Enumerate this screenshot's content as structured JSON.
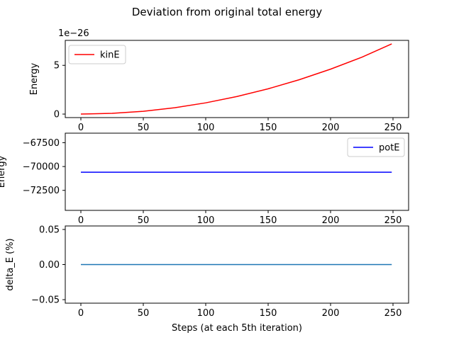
{
  "figure": {
    "title": "Deviation from original total energy"
  },
  "chart_data": [
    {
      "type": "line",
      "name": "kinetic-energy",
      "xlabel": "",
      "ylabel": "Energy",
      "offset_text": "1e−26",
      "xlim": [
        -12.5,
        262.5
      ],
      "ylim": [
        -0.36,
        7.56
      ],
      "xticks": [
        0,
        50,
        100,
        150,
        200,
        250
      ],
      "xtick_labels": [
        "0",
        "50",
        "100",
        "150",
        "200",
        "250"
      ],
      "yticks": [
        0,
        5
      ],
      "ytick_labels": [
        "0",
        "5"
      ],
      "legend": "top-left",
      "grid": false,
      "series": [
        {
          "name": "kinE",
          "color": "#ff0000",
          "x": [
            0,
            25,
            50,
            75,
            100,
            125,
            150,
            175,
            200,
            225,
            249
          ],
          "y": [
            0,
            0.072,
            0.288,
            0.648,
            1.152,
            1.8,
            2.592,
            3.528,
            4.608,
            5.832,
            7.2
          ]
        }
      ]
    },
    {
      "type": "line",
      "name": "potential-energy",
      "xlabel": "",
      "ylabel": "Energy",
      "xlim": [
        -12.5,
        262.5
      ],
      "ylim": [
        -74600,
        -66500
      ],
      "xticks": [
        0,
        50,
        100,
        150,
        200,
        250
      ],
      "xtick_labels": [
        "0",
        "50",
        "100",
        "150",
        "200",
        "250"
      ],
      "yticks": [
        -67500,
        -70000,
        -72500
      ],
      "ytick_labels": [
        "−67500",
        "−70000",
        "−72500"
      ],
      "legend": "top-right",
      "grid": false,
      "series": [
        {
          "name": "potE",
          "color": "#0000ff",
          "x": [
            0,
            249
          ],
          "y": [
            -70600,
            -70600
          ]
        }
      ]
    },
    {
      "type": "line",
      "name": "delta-energy",
      "xlabel": "Steps (at each 5th iteration)",
      "ylabel": "delta_E (%)",
      "xlim": [
        -12.5,
        262.5
      ],
      "ylim": [
        -0.055,
        0.055
      ],
      "xticks": [
        0,
        50,
        100,
        150,
        200,
        250
      ],
      "xtick_labels": [
        "0",
        "50",
        "100",
        "150",
        "200",
        "250"
      ],
      "yticks": [
        0.05,
        0.0,
        -0.05
      ],
      "ytick_labels": [
        "0.05",
        "0.00",
        "−0.05"
      ],
      "legend": "none",
      "grid": false,
      "series": [
        {
          "color": "#1f77b4",
          "x": [
            0,
            249
          ],
          "y": [
            0,
            0
          ]
        }
      ]
    }
  ]
}
